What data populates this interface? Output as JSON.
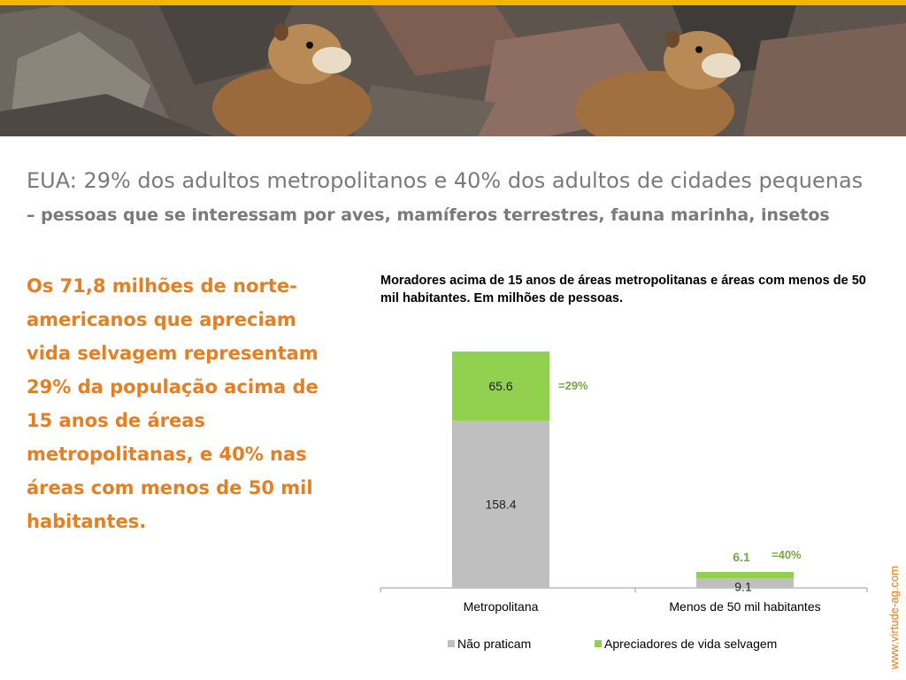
{
  "slide": {
    "title": "EUA: 29% dos adultos metropolitanos e 40% dos adultos de cidades pequenas",
    "subtitle": "– pessoas que se interessam por aves, mamíferos terrestres, fauna marinha, insetos",
    "body": "Os 71,8 milhões de norte-americanos que apreciam vida selvagem representam 29% da população acima de 15 anos de áreas metropolitanas, e 40% nas áreas com menos de 50 mil habitantes.",
    "website": "www.virtude-ag.com",
    "banner_image": "marmots-on-rocks-photo",
    "accent_color": "#f4b400",
    "text_color": "#e67e22"
  },
  "chart_data": {
    "type": "bar",
    "stacked": true,
    "title": "Moradores  acima de 15 anos de áreas metropolitanas e áreas com menos de 50 mil habitantes. Em milhões de pessoas.",
    "categories": [
      "Metropolitana",
      "Menos de 50 mil habitantes"
    ],
    "series": [
      {
        "name": "Não praticam",
        "values": [
          158.4,
          9.1
        ],
        "color": "#bfbfbf"
      },
      {
        "name": "Apreciadores de vida selvagem",
        "values": [
          65.6,
          6.1
        ],
        "color": "#92d050"
      }
    ],
    "annotations": [
      "=29%",
      "=40%"
    ],
    "annotation_color": "#76a840",
    "ylim": [
      0,
      224
    ],
    "legend_position": "bottom",
    "grid": false
  }
}
